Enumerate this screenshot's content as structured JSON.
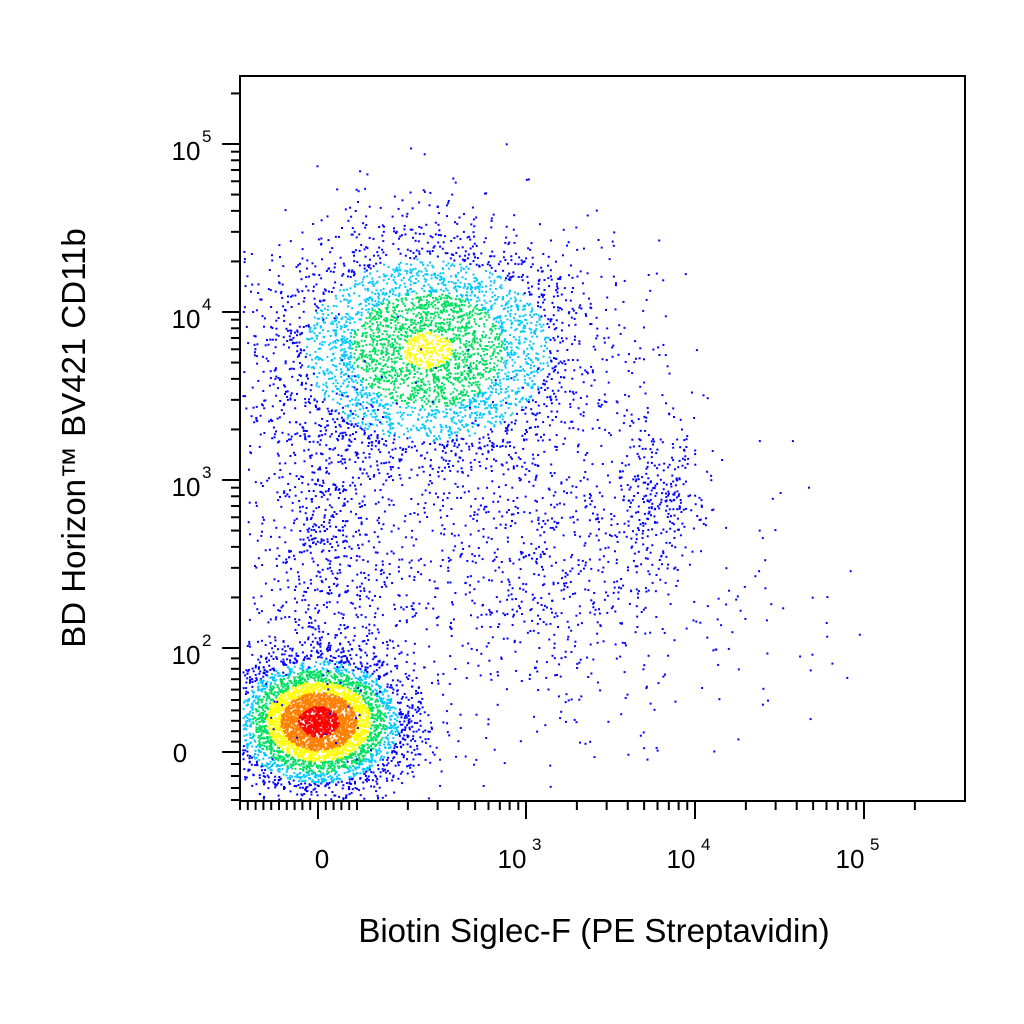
{
  "chart_data": {
    "type": "scatter",
    "subtype": "flow-cytometry-density-dot-plot",
    "xlabel": "Biotin Siglec-F  (PE Streptavidin)",
    "ylabel": "BD Horizon™ BV421 CD11b",
    "x_scale": "biexponential",
    "y_scale": "biexponential",
    "xlim": [
      -200,
      200000
    ],
    "ylim": [
      -50,
      250000
    ],
    "grid": false,
    "legend": "none",
    "x_ticks": [
      {
        "label": "0",
        "base": "",
        "exp": "",
        "value": 0
      },
      {
        "label": "10^3",
        "base": "10",
        "exp": "3",
        "value": 1000
      },
      {
        "label": "10^4",
        "base": "10",
        "exp": "4",
        "value": 10000
      },
      {
        "label": "10^5",
        "base": "10",
        "exp": "5",
        "value": 100000
      }
    ],
    "y_ticks": [
      {
        "label": "0",
        "base": "",
        "exp": "",
        "value": 0
      },
      {
        "label": "10^2",
        "base": "10",
        "exp": "2",
        "value": 100
      },
      {
        "label": "10^3",
        "base": "10",
        "exp": "3",
        "value": 1000
      },
      {
        "label": "10^4",
        "base": "10",
        "exp": "4",
        "value": 10000
      },
      {
        "label": "10^5",
        "base": "10",
        "exp": "5",
        "value": 100000
      }
    ],
    "density_colors": [
      "#0000ff",
      "#00c8ff",
      "#00e060",
      "#ffff00",
      "#ff8000",
      "#ff0000"
    ],
    "populations": [
      {
        "x_center": 0,
        "y_center": 30,
        "relative_size": 0.55,
        "peak_density": "high"
      },
      {
        "x_center": 150,
        "y_center": 6000,
        "relative_size": 0.35,
        "peak_density": "medium"
      },
      {
        "x_center": 6000,
        "y_center": 900,
        "relative_size": 0.04,
        "peak_density": "low"
      },
      {
        "x_center": 400,
        "y_center": 300,
        "relative_size": 0.06,
        "peak_density": "low"
      }
    ]
  }
}
